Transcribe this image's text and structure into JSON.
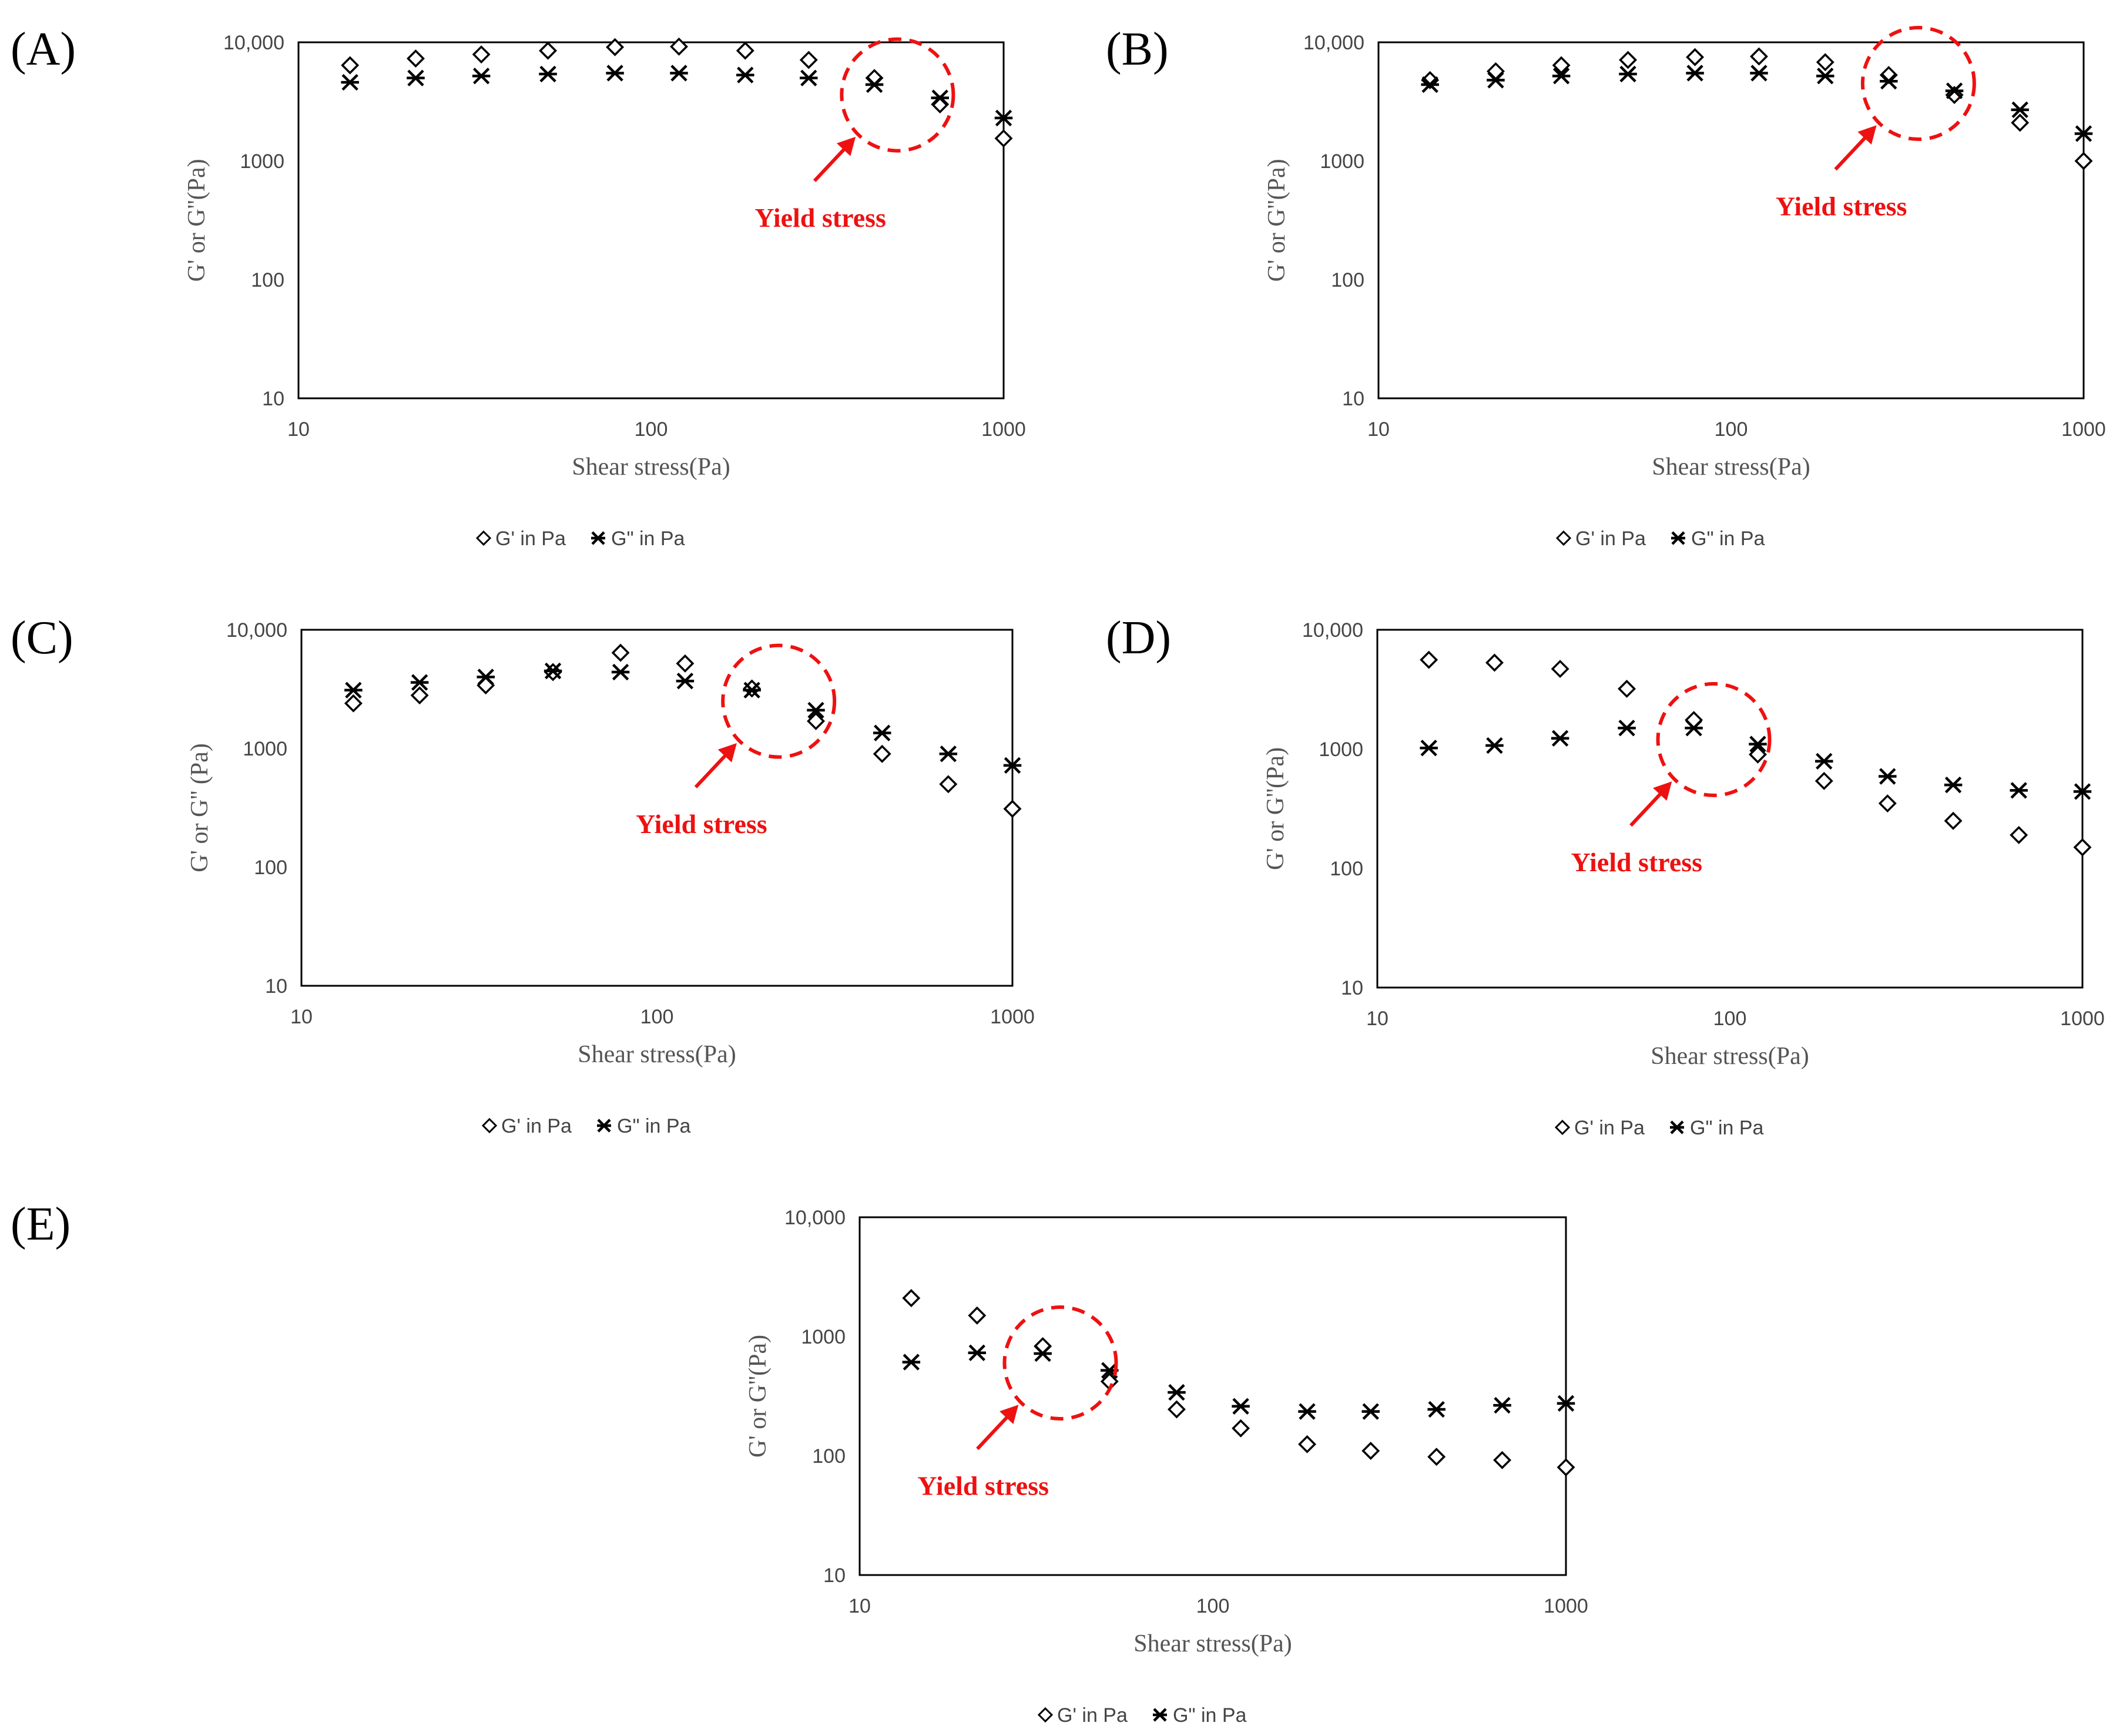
{
  "chart_data": [
    {
      "panel": "(A)",
      "type": "scatter",
      "xscale": "log",
      "yscale": "log",
      "xlim": [
        10,
        1000
      ],
      "ylim": [
        10,
        10000
      ],
      "xticks": [
        "10",
        "100",
        "1000"
      ],
      "yticks": [
        "10",
        "100",
        "1000",
        "10,000"
      ],
      "xlabel": "Shear stress(Pa)",
      "ylabel": "G' or G''(Pa)",
      "series": [
        {
          "name": "G' in Pa",
          "marker": "diamond",
          "x": [
            14,
            21.5,
            33,
            51,
            79,
            120,
            185,
            280,
            430,
            660,
            1000
          ],
          "y": [
            6400,
            7300,
            7900,
            8500,
            9100,
            9200,
            8500,
            7100,
            5000,
            3000,
            1550
          ]
        },
        {
          "name": "G'' in Pa",
          "marker": "asterisk",
          "x": [
            14,
            21.5,
            33,
            51,
            79,
            120,
            185,
            280,
            430,
            660,
            1000
          ],
          "y": [
            4600,
            5000,
            5200,
            5400,
            5500,
            5500,
            5300,
            5000,
            4400,
            3400,
            2300
          ]
        }
      ],
      "annotation": {
        "text": "Yield stress",
        "circle_center": [
          500,
          3600
        ]
      },
      "legend": "bottom"
    },
    {
      "panel": "(B)",
      "type": "scatter",
      "xscale": "log",
      "yscale": "log",
      "xlim": [
        10,
        1000
      ],
      "ylim": [
        10,
        10000
      ],
      "xticks": [
        "10",
        "100",
        "1000"
      ],
      "yticks": [
        "10",
        "100",
        "1000",
        "10,000"
      ],
      "xlabel": "Shear stress(Pa)",
      "ylabel": "G' or G''(Pa)",
      "series": [
        {
          "name": "G' in Pa",
          "marker": "diamond",
          "x": [
            14,
            21.5,
            33,
            51,
            79,
            120,
            185,
            280,
            430,
            660,
            1000
          ],
          "y": [
            4800,
            5700,
            6400,
            7100,
            7500,
            7600,
            6800,
            5300,
            3600,
            2100,
            1000
          ]
        },
        {
          "name": "G'' in Pa",
          "marker": "asterisk",
          "x": [
            14,
            21.5,
            33,
            51,
            79,
            120,
            185,
            280,
            430,
            660,
            1000
          ],
          "y": [
            4400,
            4800,
            5200,
            5400,
            5500,
            5500,
            5200,
            4700,
            3900,
            2700,
            1700
          ]
        }
      ],
      "annotation": {
        "text": "Yield stress",
        "circle_center": [
          340,
          4500
        ]
      },
      "legend": "bottom"
    },
    {
      "panel": "(C)",
      "type": "scatter",
      "xscale": "log",
      "yscale": "log",
      "xlim": [
        10,
        1000
      ],
      "ylim": [
        10,
        10000
      ],
      "xticks": [
        "10",
        "100",
        "1000"
      ],
      "yticks": [
        "10",
        "100",
        "1000",
        "10,000"
      ],
      "xlabel": "Shear stress(Pa)",
      "ylabel": "G' or G'' (Pa)",
      "series": [
        {
          "name": "G' in Pa",
          "marker": "diamond",
          "x": [
            14,
            21.5,
            33,
            51,
            79,
            120,
            185,
            280,
            430,
            660,
            1000
          ],
          "y": [
            2400,
            2800,
            3400,
            4400,
            6400,
            5200,
            3200,
            1700,
            900,
            500,
            310
          ]
        },
        {
          "name": "G'' in Pa",
          "marker": "asterisk",
          "x": [
            14,
            21.5,
            33,
            51,
            79,
            120,
            185,
            280,
            430,
            660,
            1000
          ],
          "y": [
            3100,
            3600,
            4000,
            4500,
            4400,
            3700,
            3100,
            2100,
            1350,
            900,
            720
          ]
        }
      ],
      "annotation": {
        "text": "Yield stress",
        "circle_center": [
          220,
          2500
        ]
      },
      "legend": "bottom"
    },
    {
      "panel": "(D)",
      "type": "scatter",
      "xscale": "log",
      "yscale": "log",
      "xlim": [
        10,
        1000
      ],
      "ylim": [
        10,
        10000
      ],
      "xticks": [
        "10",
        "100",
        "1000"
      ],
      "yticks": [
        "10",
        "100",
        "1000",
        "10,000"
      ],
      "xlabel": "Shear stress(Pa)",
      "ylabel": "G' or G''(Pa)",
      "series": [
        {
          "name": "G' in Pa",
          "marker": "diamond",
          "x": [
            14,
            21.5,
            33,
            51,
            79,
            120,
            185,
            280,
            430,
            660,
            1000
          ],
          "y": [
            5600,
            5300,
            4700,
            3200,
            1750,
            900,
            540,
            350,
            250,
            190,
            150
          ]
        },
        {
          "name": "G'' in Pa",
          "marker": "asterisk",
          "x": [
            14,
            21.5,
            33,
            51,
            79,
            120,
            185,
            280,
            430,
            660,
            1000
          ],
          "y": [
            1020,
            1070,
            1230,
            1500,
            1500,
            1100,
            790,
            590,
            500,
            450,
            440
          ]
        }
      ],
      "annotation": {
        "text": "Yield stress",
        "circle_center": [
          90,
          1200
        ]
      },
      "legend": "bottom"
    },
    {
      "panel": "(E)",
      "type": "scatter",
      "xscale": "log",
      "yscale": "log",
      "xlim": [
        10,
        1000
      ],
      "ylim": [
        10,
        10000
      ],
      "xticks": [
        "10",
        "100",
        "1000"
      ],
      "yticks": [
        "10",
        "100",
        "1000",
        "10,000"
      ],
      "xlabel": "Shear stress(Pa)",
      "ylabel": "G' or G''(Pa)",
      "series": [
        {
          "name": "G' in Pa",
          "marker": "diamond",
          "x": [
            14,
            21.5,
            33,
            51,
            79,
            120,
            185,
            280,
            430,
            660,
            1000
          ],
          "y": [
            2100,
            1500,
            830,
            420,
            245,
            170,
            125,
            110,
            98,
            92,
            80
          ]
        },
        {
          "name": "G'' in Pa",
          "marker": "asterisk",
          "x": [
            14,
            21.5,
            33,
            51,
            79,
            120,
            185,
            280,
            430,
            660,
            1000
          ],
          "y": [
            610,
            730,
            720,
            520,
            340,
            260,
            235,
            235,
            245,
            265,
            275
          ]
        }
      ],
      "annotation": {
        "text": "Yield stress",
        "circle_center": [
          37,
          600
        ]
      },
      "legend": "bottom"
    }
  ],
  "legend_labels": {
    "g_prime": "G' in Pa",
    "g_double_prime": "G\" in Pa"
  },
  "colors": {
    "annotation": "#ee1111",
    "marker": "#000000",
    "axis": "#000000"
  }
}
